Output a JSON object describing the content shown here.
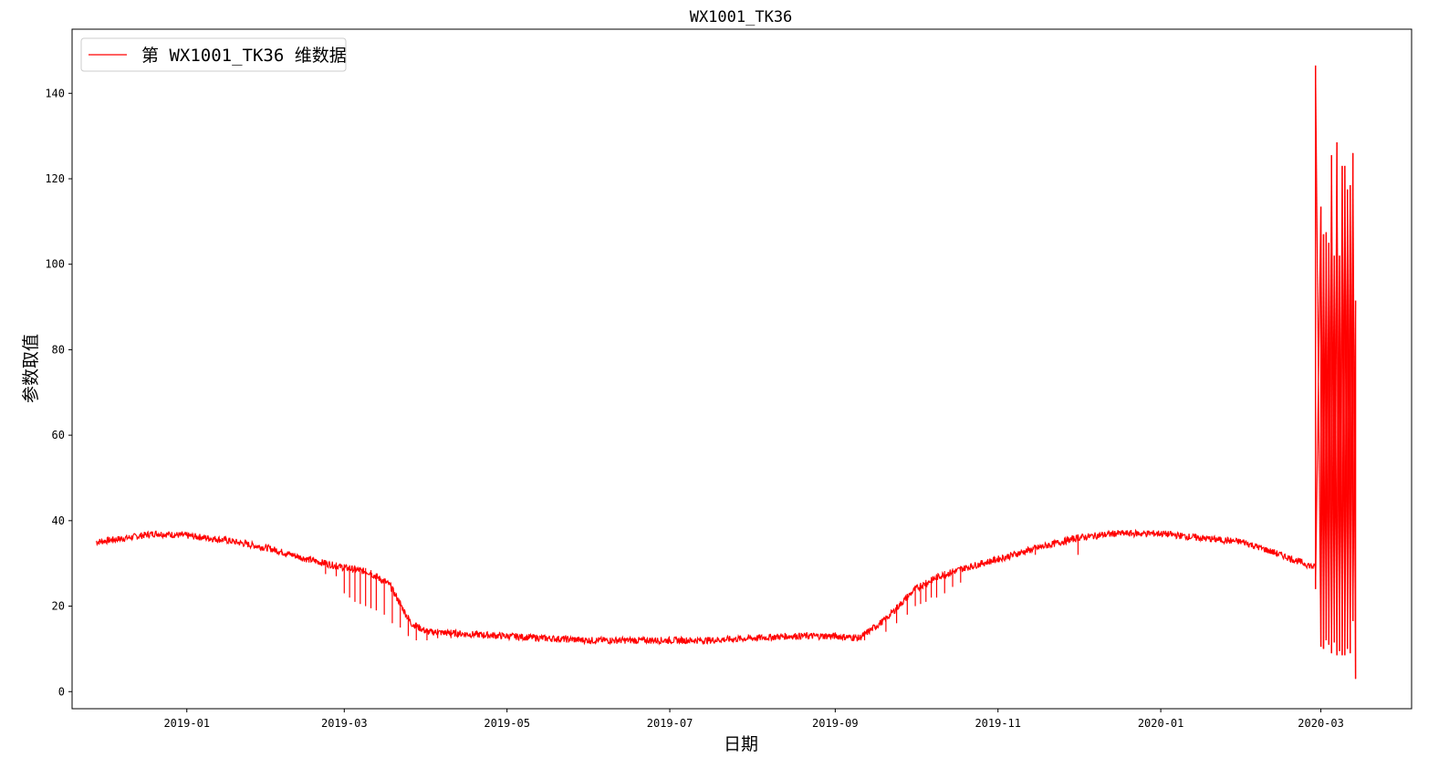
{
  "chart_data": {
    "type": "line",
    "title": "WX1001_TK36",
    "xlabel": "日期",
    "ylabel": "参数取值",
    "x_ticks": [
      "2019-01",
      "2019-03",
      "2019-05",
      "2019-07",
      "2019-09",
      "2019-11",
      "2020-01",
      "2020-03"
    ],
    "y_ticks": [
      0,
      20,
      40,
      60,
      80,
      100,
      120,
      140
    ],
    "xlim": [
      "2018-11-19",
      "2020-04-04"
    ],
    "ylim": [
      -4,
      155
    ],
    "legend_position": "upper-left",
    "grid": false,
    "series": [
      {
        "name": "第 WX1001_TK36 维数据",
        "color": "#ff0000",
        "x": [
          "2018-11-28",
          "2018-12-10",
          "2018-12-20",
          "2019-01-01",
          "2019-01-15",
          "2019-02-01",
          "2019-02-15",
          "2019-03-01",
          "2019-03-10",
          "2019-03-18",
          "2019-03-26",
          "2019-04-01",
          "2019-04-15",
          "2019-05-01",
          "2019-05-15",
          "2019-06-01",
          "2019-06-15",
          "2019-07-01",
          "2019-07-15",
          "2019-08-01",
          "2019-08-15",
          "2019-09-01",
          "2019-09-10",
          "2019-09-20",
          "2019-10-01",
          "2019-10-10",
          "2019-10-20",
          "2019-11-01",
          "2019-11-15",
          "2019-12-01",
          "2019-12-15",
          "2020-01-01",
          "2020-01-15",
          "2020-02-01",
          "2020-02-15",
          "2020-02-28"
        ],
        "values": [
          35,
          36,
          37,
          36.5,
          35.5,
          33.5,
          31,
          29,
          28,
          25,
          16,
          14,
          13.5,
          13,
          12.5,
          12,
          12,
          12,
          12,
          12.5,
          13,
          13,
          12.5,
          17,
          24,
          27,
          29,
          31,
          33.5,
          36,
          37,
          37,
          36,
          35,
          32,
          29
        ]
      }
    ],
    "dips": [
      {
        "x": "2019-02-22",
        "y": 27.5
      },
      {
        "x": "2019-02-26",
        "y": 27
      },
      {
        "x": "2019-03-01",
        "y": 23
      },
      {
        "x": "2019-03-03",
        "y": 22
      },
      {
        "x": "2019-03-05",
        "y": 21
      },
      {
        "x": "2019-03-07",
        "y": 20.5
      },
      {
        "x": "2019-03-09",
        "y": 20
      },
      {
        "x": "2019-03-11",
        "y": 19.5
      },
      {
        "x": "2019-03-13",
        "y": 19
      },
      {
        "x": "2019-03-16",
        "y": 18
      },
      {
        "x": "2019-03-19",
        "y": 16
      },
      {
        "x": "2019-03-22",
        "y": 15
      },
      {
        "x": "2019-03-25",
        "y": 13
      },
      {
        "x": "2019-03-28",
        "y": 12
      },
      {
        "x": "2019-04-01",
        "y": 12
      },
      {
        "x": "2019-04-05",
        "y": 12.5
      },
      {
        "x": "2019-04-10",
        "y": 12.5
      },
      {
        "x": "2019-09-08",
        "y": 12
      },
      {
        "x": "2019-09-12",
        "y": 12
      },
      {
        "x": "2019-09-20",
        "y": 14
      },
      {
        "x": "2019-09-24",
        "y": 16
      },
      {
        "x": "2019-09-28",
        "y": 18
      },
      {
        "x": "2019-10-01",
        "y": 20
      },
      {
        "x": "2019-10-03",
        "y": 20.5
      },
      {
        "x": "2019-10-05",
        "y": 21
      },
      {
        "x": "2019-10-07",
        "y": 22
      },
      {
        "x": "2019-10-09",
        "y": 22
      },
      {
        "x": "2019-10-12",
        "y": 23
      },
      {
        "x": "2019-10-15",
        "y": 24.5
      },
      {
        "x": "2019-10-18",
        "y": 25.5
      },
      {
        "x": "2019-11-15",
        "y": 32
      },
      {
        "x": "2019-12-01",
        "y": 32
      }
    ],
    "spikes": [
      {
        "x": "2020-02-28",
        "hi": 146.5,
        "lo": 24
      },
      {
        "x": "2020-03-01",
        "hi": 113.5,
        "lo": 10.5
      },
      {
        "x": "2020-03-02",
        "hi": 107,
        "lo": 10
      },
      {
        "x": "2020-03-03",
        "hi": 107.5,
        "lo": 12
      },
      {
        "x": "2020-03-04",
        "hi": 105,
        "lo": 11
      },
      {
        "x": "2020-03-05",
        "hi": 125.5,
        "lo": 9
      },
      {
        "x": "2020-03-06",
        "hi": 102,
        "lo": 11.5
      },
      {
        "x": "2020-03-07",
        "hi": 128.5,
        "lo": 8.5
      },
      {
        "x": "2020-03-08",
        "hi": 102,
        "lo": 9.5
      },
      {
        "x": "2020-03-09",
        "hi": 123,
        "lo": 8.5
      },
      {
        "x": "2020-03-10",
        "hi": 123,
        "lo": 8.5
      },
      {
        "x": "2020-03-11",
        "hi": 117.5,
        "lo": 10
      },
      {
        "x": "2020-03-12",
        "hi": 118.5,
        "lo": 9
      },
      {
        "x": "2020-03-13",
        "hi": 126,
        "lo": 16.5
      },
      {
        "x": "2020-03-14",
        "hi": 91.5,
        "lo": 3
      }
    ]
  }
}
